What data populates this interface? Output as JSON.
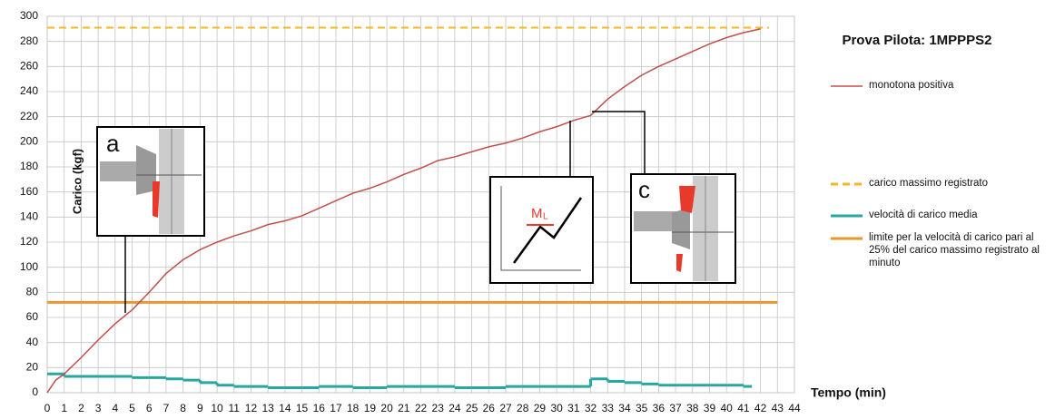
{
  "chart_data": {
    "type": "line",
    "title": "Prova Pilota: 1MPPPS2",
    "y_label": "Carico (kgf)",
    "x_label": "Tempo (min)",
    "annotations": [
      "a",
      "c",
      "M",
      "L"
    ],
    "xlim": [
      0,
      44
    ],
    "xticks": [
      0,
      1,
      2,
      3,
      4,
      5,
      6,
      7,
      8,
      9,
      10,
      11,
      12,
      13,
      14,
      15,
      16,
      17,
      18,
      19,
      20,
      21,
      22,
      23,
      24,
      25,
      26,
      27,
      28,
      29,
      30,
      31,
      32,
      33,
      34,
      35,
      36,
      37,
      38,
      39,
      40,
      41,
      42,
      43,
      44
    ],
    "ylim": [
      0,
      300
    ],
    "yticks": [
      0,
      20,
      40,
      60,
      80,
      100,
      120,
      140,
      160,
      180,
      200,
      220,
      240,
      260,
      280,
      300
    ],
    "grid": true,
    "series": [
      {
        "name": "monotona positiva",
        "color": "#c0504d",
        "style": "line",
        "x": [
          0,
          0.5,
          1,
          2,
          3,
          4,
          5,
          6,
          7,
          8,
          9,
          10,
          11,
          12,
          13,
          14,
          15,
          16,
          17,
          18,
          19,
          20,
          21,
          22,
          23,
          24,
          25,
          26,
          27,
          28,
          29,
          30,
          31,
          32,
          33,
          34,
          35,
          36,
          37,
          38,
          39,
          40,
          41,
          42
        ],
        "values": [
          0,
          10,
          15,
          28,
          42,
          55,
          66,
          80,
          95,
          106,
          114,
          120,
          125,
          129,
          134,
          137,
          141,
          147,
          153,
          159,
          163,
          168,
          174,
          179,
          185,
          188,
          192,
          196,
          199,
          203,
          208,
          212,
          217,
          221,
          234,
          244,
          253,
          260,
          266,
          272,
          278,
          283,
          287,
          290
        ]
      },
      {
        "name": "carico massimo registrato",
        "color": "#f4b728",
        "style": "hline-dashed",
        "value": 291
      },
      {
        "name": "velocità di carico media",
        "color": "#2aa6a0",
        "style": "step",
        "x": [
          0,
          1,
          2,
          3,
          4,
          5,
          6,
          7,
          8,
          9,
          10,
          11,
          12,
          13,
          14,
          15,
          16,
          17,
          18,
          19,
          20,
          21,
          22,
          23,
          24,
          25,
          26,
          27,
          28,
          29,
          30,
          31,
          32,
          33,
          34,
          35,
          36,
          37,
          38,
          39,
          40,
          41
        ],
        "values": [
          15,
          13,
          13,
          13,
          13,
          12,
          12,
          11,
          10,
          8,
          6,
          5,
          5,
          4,
          4,
          4,
          5,
          5,
          4,
          4,
          5,
          5,
          5,
          5,
          4,
          4,
          4,
          5,
          5,
          5,
          5,
          5,
          11,
          9,
          8,
          7,
          6,
          6,
          6,
          6,
          6,
          5
        ]
      },
      {
        "name": "limite per la velocità di carico pari al 25% del carico massimo registrato al minuto",
        "color": "#e8962e",
        "style": "hline",
        "value": 72
      }
    ]
  }
}
